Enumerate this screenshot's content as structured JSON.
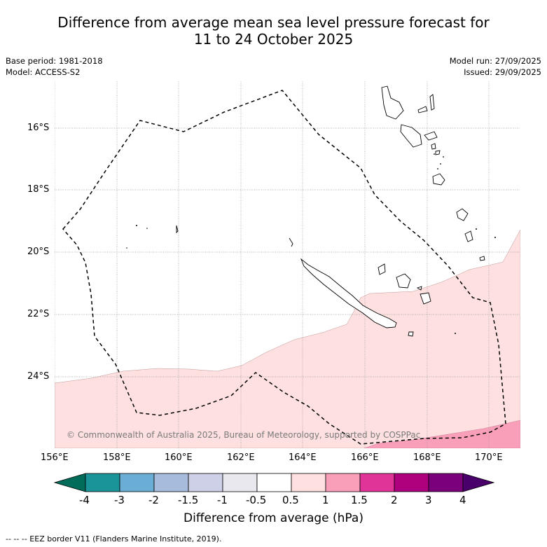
{
  "header": {
    "title_line1": "Difference from average mean sea level pressure forecast for",
    "title_line2": "11 to 24 October 2025"
  },
  "meta": {
    "base_period": "Base period: 1981-2018",
    "model": "Model: ACCESS-S2",
    "model_run": "Model run: 27/09/2025",
    "issued": "Issued: 29/09/2025"
  },
  "map": {
    "lat_labels": [
      "16°S",
      "18°S",
      "20°S",
      "22°S",
      "24°S"
    ],
    "lon_labels": [
      "156°E",
      "158°E",
      "160°E",
      "162°E",
      "164°E",
      "166°E",
      "168°E",
      "170°E"
    ],
    "copyright": "© Commonwealth of Australia 2025, Bureau of Meteorology, supported by COSPPac",
    "shading": [
      {
        "range": "0.5 to 1 hPa",
        "color": "#fde0df"
      },
      {
        "range": "1 to 1.5 hPa",
        "color": "#f99fb9"
      }
    ]
  },
  "colorbar": {
    "ticks": [
      "-4",
      "-3",
      "-2",
      "-1.5",
      "-1",
      "-0.5",
      "0.5",
      "1",
      "1.5",
      "2",
      "3",
      "4"
    ],
    "colors": [
      "#1a9399",
      "#6aaed5",
      "#a7bbdc",
      "#cdd0e6",
      "#eae8ef",
      "#ffffff",
      "#fde0df",
      "#f99fb9",
      "#e13499",
      "#ad017e",
      "#7a017a"
    ],
    "under_color": "#016c59",
    "over_color": "#49006a",
    "label": "Difference from average (hPa)"
  },
  "legend": {
    "eez": "--  --  -- EEZ border V11 (Flanders Marine Institute, 2019)."
  }
}
